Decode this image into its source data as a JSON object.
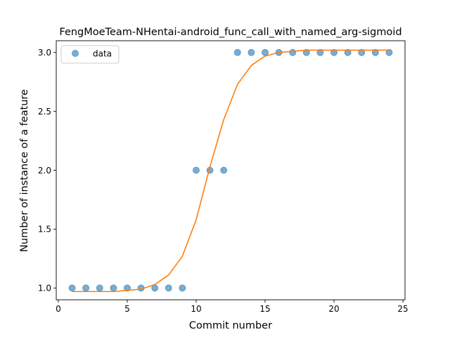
{
  "chart_data": {
    "type": "scatter",
    "title": "FengMoeTeam-NHentai-android_func_call_with_named_arg-sigmoid",
    "xlabel": "Commit number",
    "ylabel": "Number of instance of a feature",
    "xlim": [
      -0.15,
      25.15
    ],
    "ylim": [
      0.9,
      3.1
    ],
    "xticks": [
      0,
      5,
      10,
      15,
      20,
      25
    ],
    "yticks": [
      1.0,
      1.5,
      2.0,
      2.5,
      3.0
    ],
    "xtick_labels": [
      "0",
      "5",
      "10",
      "15",
      "20",
      "25"
    ],
    "ytick_labels": [
      "1.0",
      "1.5",
      "2.0",
      "2.5",
      "3.0"
    ],
    "grid": false,
    "legend_position": "upper-left",
    "series": [
      {
        "name": "data",
        "kind": "scatter",
        "color": "#1f77b4",
        "x": [
          1,
          2,
          3,
          4,
          5,
          6,
          7,
          8,
          9,
          10,
          11,
          12,
          13,
          14,
          15,
          16,
          17,
          18,
          19,
          20,
          21,
          22,
          23,
          24
        ],
        "y": [
          1,
          1,
          1,
          1,
          1,
          1,
          1,
          1,
          1,
          2,
          2,
          2,
          3,
          3,
          3,
          3,
          3,
          3,
          3,
          3,
          3,
          3,
          3,
          3
        ]
      },
      {
        "kind": "line",
        "color": "#ff7f0e",
        "x": [
          1,
          2,
          3,
          4,
          5,
          6,
          7,
          8,
          9,
          10,
          11,
          12,
          13,
          14,
          15,
          16,
          17,
          18,
          19,
          20,
          21,
          22,
          23,
          24
        ],
        "y": [
          0.97,
          0.97,
          0.97,
          0.97,
          0.98,
          0.99,
          1.03,
          1.11,
          1.27,
          1.58,
          2.03,
          2.43,
          2.73,
          2.89,
          2.97,
          3.0,
          3.01,
          3.02,
          3.02,
          3.02,
          3.02,
          3.02,
          3.02,
          3.02
        ]
      }
    ]
  }
}
